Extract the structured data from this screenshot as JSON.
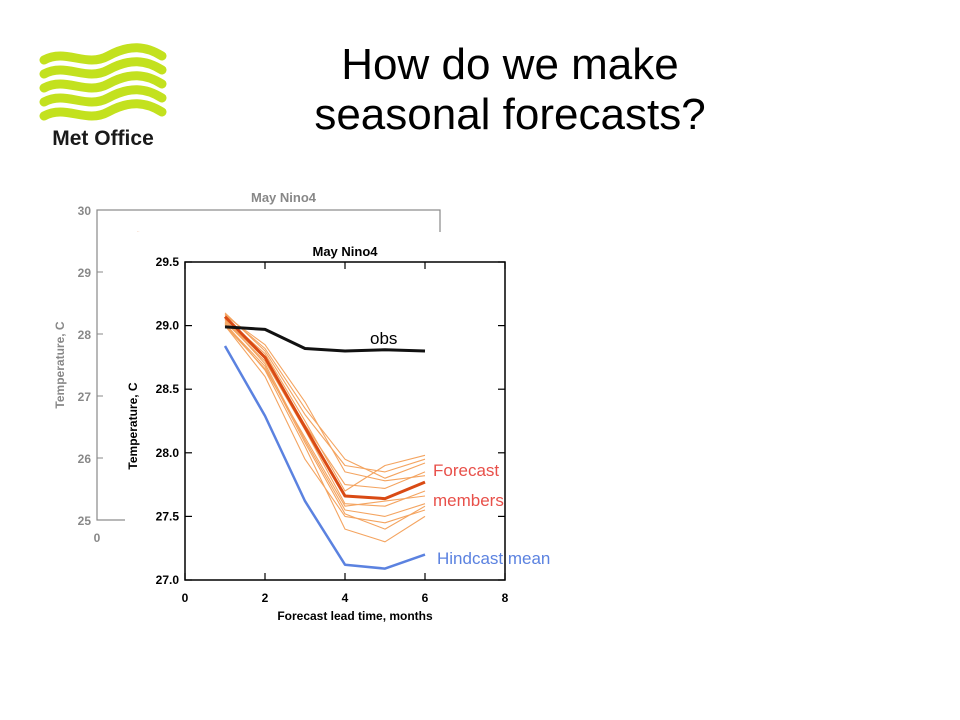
{
  "slide": {
    "title_line1": "How do we make",
    "title_line2": "seasonal forecasts?",
    "logo_text": "Met Office"
  },
  "colors": {
    "logo_green": "#C3E11E",
    "obs": "#111111",
    "forecast_members": "#F4A460",
    "forecast_mean": "#D94A14",
    "forecast_label": "#E8504A",
    "hindcast": "#5B82E0"
  },
  "chart_data": [
    {
      "type": "line",
      "title": "May Nino4",
      "xlabel": "",
      "ylabel": "Temperature, C",
      "xlim": [
        0,
        8
      ],
      "ylim": [
        25,
        30
      ],
      "x_ticks": [
        "0"
      ],
      "y_ticks": [
        "25",
        "26",
        "27",
        "28",
        "29",
        "30"
      ],
      "note": "background copy of the same plot, partially hidden"
    },
    {
      "type": "line",
      "title": "May Nino4",
      "xlabel": "Forecast lead time, months",
      "ylabel": "Temperature, C",
      "xlim": [
        0,
        8
      ],
      "ylim": [
        27.0,
        29.5
      ],
      "x_ticks": [
        "0",
        "2",
        "4",
        "6",
        "8"
      ],
      "y_ticks": [
        "27.0",
        "27.5",
        "28.0",
        "28.5",
        "29.0",
        "29.5"
      ],
      "annotations": {
        "obs": "obs",
        "forecast_line1": "Forecast",
        "forecast_line2": "members",
        "hindcast": "Hindcast mean"
      },
      "x": [
        1,
        2,
        3,
        4,
        5,
        6
      ],
      "series": [
        {
          "name": "obs",
          "role": "obs",
          "values": [
            28.99,
            28.97,
            28.82,
            28.8,
            28.81,
            28.8
          ]
        },
        {
          "name": "Hindcast mean",
          "role": "hindcast",
          "values": [
            28.84,
            28.29,
            27.62,
            27.12,
            27.09,
            27.2
          ]
        },
        {
          "name": "Forecast members",
          "role": "forecast_mean",
          "values": [
            29.07,
            28.75,
            28.2,
            27.66,
            27.64,
            27.77
          ]
        },
        {
          "role": "member",
          "values": [
            29.1,
            28.8,
            28.3,
            27.9,
            27.85,
            27.95
          ]
        },
        {
          "role": "member",
          "values": [
            29.05,
            28.7,
            28.1,
            27.55,
            27.5,
            27.6
          ]
        },
        {
          "role": "member",
          "values": [
            29.02,
            28.65,
            28.05,
            27.4,
            27.3,
            27.5
          ]
        },
        {
          "role": "member",
          "values": [
            29.08,
            28.85,
            28.4,
            27.85,
            27.78,
            27.82
          ]
        },
        {
          "role": "member",
          "values": [
            29.0,
            28.6,
            27.95,
            27.5,
            27.45,
            27.55
          ]
        },
        {
          "role": "member",
          "values": [
            29.06,
            28.78,
            28.25,
            27.7,
            27.9,
            27.98
          ]
        },
        {
          "role": "member",
          "values": [
            29.03,
            28.72,
            28.18,
            27.6,
            27.58,
            27.7
          ]
        },
        {
          "role": "member",
          "values": [
            29.09,
            28.82,
            28.35,
            27.95,
            27.8,
            27.92
          ]
        },
        {
          "role": "member",
          "values": [
            29.01,
            28.68,
            28.08,
            27.52,
            27.4,
            27.58
          ]
        },
        {
          "role": "member",
          "values": [
            29.04,
            28.74,
            28.22,
            27.75,
            27.72,
            27.85
          ]
        },
        {
          "role": "member",
          "values": [
            29.0,
            28.66,
            28.12,
            27.58,
            27.62,
            27.66
          ]
        }
      ]
    }
  ]
}
